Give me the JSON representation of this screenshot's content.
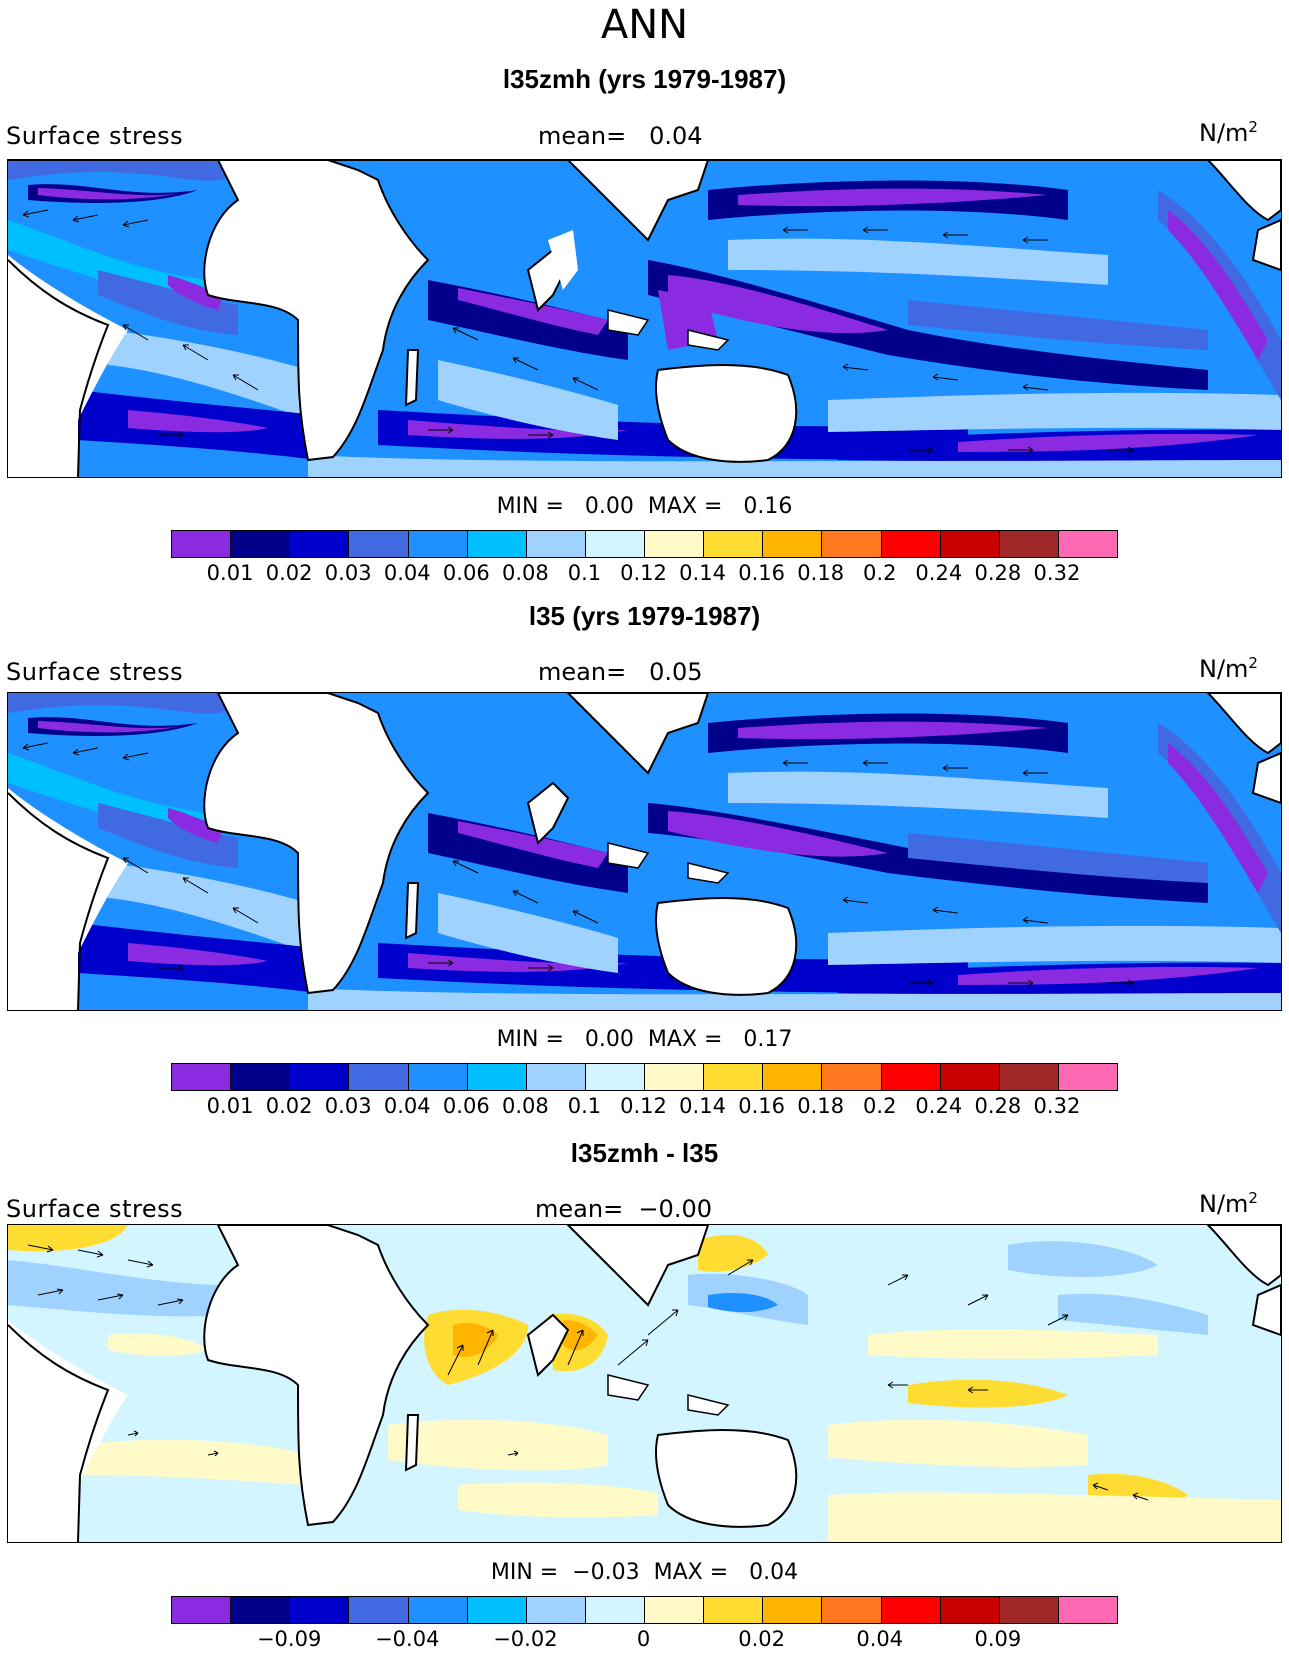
{
  "title": "ANN",
  "panels": [
    {
      "id": "p1",
      "title": "l35zmh (yrs 1979-1987)",
      "label": "Surface stress",
      "mean_label": "mean=",
      "mean_value": "0.04",
      "unit": "N/m",
      "unit_exp": "2",
      "min_label": "MIN =",
      "min_value": "0.00",
      "max_label": "MAX =",
      "max_value": "0.16"
    },
    {
      "id": "p2",
      "title": "l35 (yrs 1979-1987)",
      "label": "Surface stress",
      "mean_label": "mean=",
      "mean_value": "0.05",
      "unit": "N/m",
      "unit_exp": "2",
      "min_label": "MIN =",
      "min_value": "0.00",
      "max_label": "MAX =",
      "max_value": "0.17"
    },
    {
      "id": "p3",
      "title": "l35zmh - l35",
      "label": "Surface stress",
      "mean_label": "mean=",
      "mean_value": "−0.00",
      "unit": "N/m",
      "unit_exp": "2",
      "min_label": "MIN =",
      "min_value": "−0.03",
      "max_label": "MAX =",
      "max_value": "0.04"
    }
  ],
  "colorbar_colors": [
    "#8a2be2",
    "#00008b",
    "#0000cd",
    "#4169e1",
    "#1e90ff",
    "#00bfff",
    "#a0d2ff",
    "#d2f5ff",
    "#fffac8",
    "#ffdc32",
    "#ffb400",
    "#ff781e",
    "#ff0000",
    "#c80000",
    "#a02828",
    "#ff69b4"
  ],
  "colorbar_ticks_abs": [
    "0.01",
    "0.02",
    "0.03",
    "0.04",
    "0.06",
    "0.08",
    "0.1",
    "0.12",
    "0.14",
    "0.16",
    "0.18",
    "0.2",
    "0.24",
    "0.28",
    "0.32"
  ],
  "colorbar_ticks_diff": [
    "−0.09",
    "−0.04",
    "−0.02",
    "0",
    "0.02",
    "0.04",
    "0.09"
  ],
  "colors": {
    "ocean_abs_bg": "#1e90ff",
    "ocean_diff_bg": "#d2f5ff",
    "land": "#ffffff",
    "coast": "#000000"
  }
}
